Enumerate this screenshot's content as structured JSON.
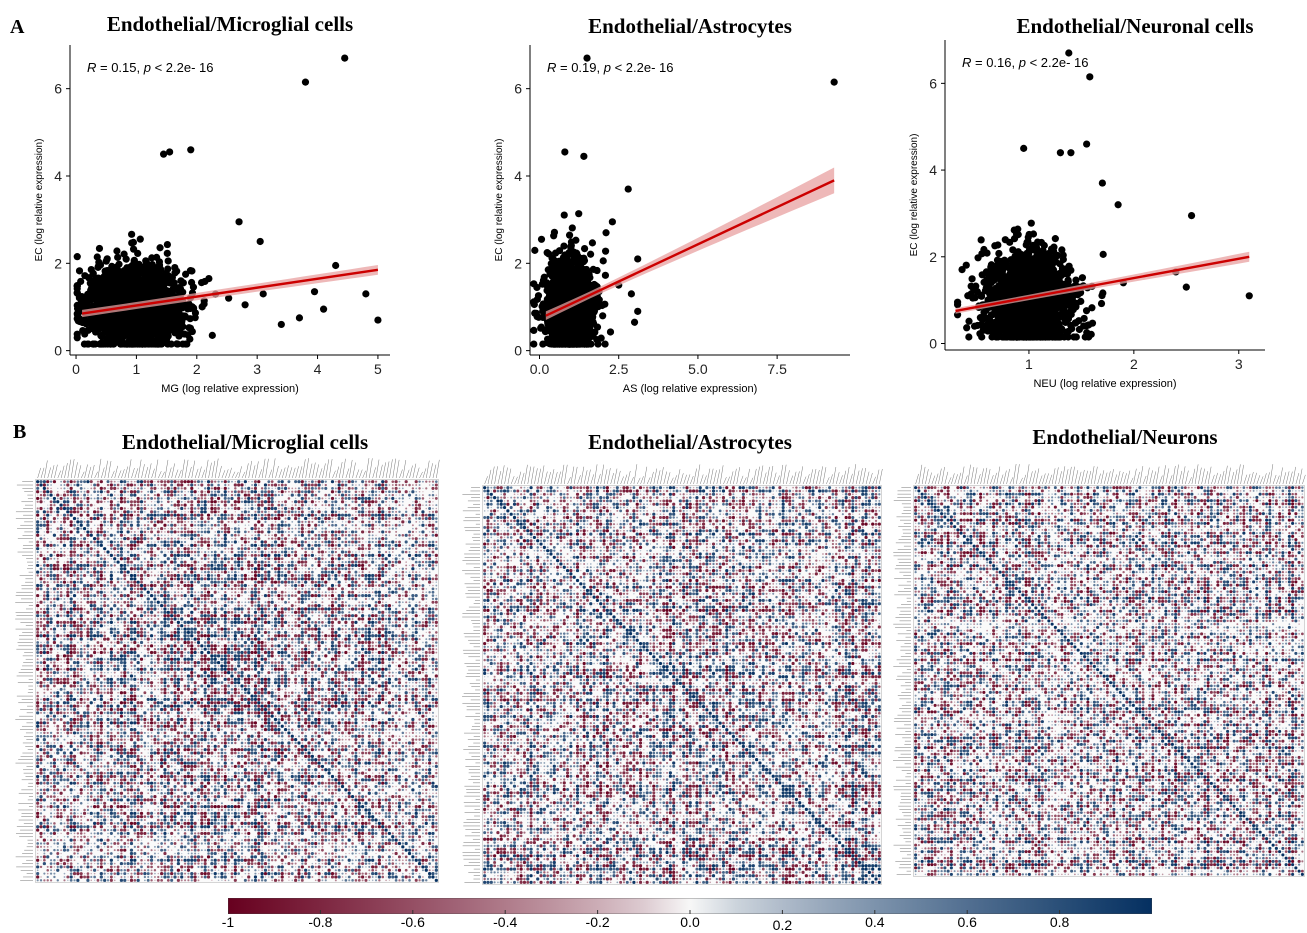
{
  "panels": {
    "A": {
      "label": "A"
    },
    "B": {
      "label": "B"
    }
  },
  "colors": {
    "point": "#000000",
    "fit_line": "#cc0000",
    "ci_band": "#e8a0a0",
    "neg": "#67001f",
    "zero": "#f7f7f7",
    "pos": "#053061"
  },
  "chart_data": [
    {
      "type": "scatter",
      "title": "Endothelial/Microglial cells",
      "xlabel": "MG (log relative expression)",
      "ylabel": "EC (log relative expression)",
      "annotation": {
        "r": "R",
        "r_text": " = 0.15, ",
        "p": "p",
        "p_text": " < 2.2e- 16"
      },
      "xlim": [
        -0.1,
        5.2
      ],
      "ylim": [
        -0.1,
        7.0
      ],
      "xticks": [
        0,
        1,
        2,
        3,
        4,
        5
      ],
      "yticks": [
        0,
        2,
        4,
        6
      ],
      "xtick_labels": [
        "0",
        "1",
        "2",
        "3",
        "4",
        "5"
      ],
      "ytick_labels": [
        "0",
        "2",
        "4",
        "6"
      ],
      "cloud": {
        "cx": 1.0,
        "cy": 1.0,
        "sx": 0.35,
        "sy": 0.45,
        "n": 2200
      },
      "points": [
        [
          3.8,
          6.15
        ],
        [
          4.45,
          6.7
        ],
        [
          1.45,
          4.5
        ],
        [
          1.55,
          4.55
        ],
        [
          1.9,
          4.6
        ],
        [
          2.7,
          2.95
        ],
        [
          3.05,
          2.5
        ],
        [
          4.3,
          1.95
        ],
        [
          3.95,
          1.35
        ],
        [
          4.1,
          0.95
        ],
        [
          4.8,
          1.3
        ],
        [
          5.0,
          0.7
        ],
        [
          3.7,
          0.75
        ],
        [
          3.4,
          0.6
        ],
        [
          3.1,
          1.3
        ],
        [
          2.8,
          1.05
        ],
        [
          2.2,
          1.65
        ]
      ],
      "fit": {
        "x0": 0.1,
        "y0": 0.85,
        "x1": 5.0,
        "y1": 1.85,
        "ci0": 0.08,
        "ci1": 0.12
      }
    },
    {
      "type": "scatter",
      "title": "Endothelial/Astrocytes",
      "xlabel": "AS (log relative expression)",
      "ylabel": "EC (log relative expression)",
      "annotation": {
        "r": "R",
        "r_text": " = 0.19, ",
        "p": "p",
        "p_text": " < 2.2e- 16"
      },
      "xlim": [
        -0.3,
        9.8
      ],
      "ylim": [
        -0.1,
        7.0
      ],
      "xticks": [
        0.0,
        2.5,
        5.0,
        7.5
      ],
      "yticks": [
        0,
        2,
        4,
        6
      ],
      "xtick_labels": [
        "0.0",
        "2.5",
        "5.0",
        "7.5"
      ],
      "ytick_labels": [
        "0",
        "2",
        "4",
        "6"
      ],
      "cloud": {
        "cx": 0.95,
        "cy": 1.0,
        "sx": 0.35,
        "sy": 0.55,
        "n": 1500
      },
      "points": [
        [
          1.5,
          6.7
        ],
        [
          9.3,
          6.15
        ],
        [
          0.8,
          4.55
        ],
        [
          1.4,
          4.45
        ],
        [
          2.8,
          3.7
        ],
        [
          2.3,
          2.95
        ],
        [
          2.1,
          2.7
        ],
        [
          2.9,
          1.3
        ],
        [
          3.1,
          0.9
        ],
        [
          3.0,
          0.65
        ],
        [
          3.1,
          2.1
        ],
        [
          2.5,
          1.5
        ]
      ],
      "fit": {
        "x0": 0.2,
        "y0": 0.8,
        "x1": 9.3,
        "y1": 3.9,
        "ci0": 0.08,
        "ci1": 0.35
      }
    },
    {
      "type": "scatter",
      "title": "Endothelial/Neuronal cells",
      "xlabel": "NEU (log relative expression)",
      "ylabel": "EC (log relative expression)",
      "annotation": {
        "r": "R",
        "r_text": " = 0.16, ",
        "p": "p",
        "p_text": " < 2.2e- 16"
      },
      "xlim": [
        0.2,
        3.25
      ],
      "ylim": [
        -0.15,
        7.0
      ],
      "xticks": [
        1,
        2,
        3
      ],
      "yticks": [
        0,
        2,
        4,
        6
      ],
      "xtick_labels": [
        "1",
        "2",
        "3"
      ],
      "ytick_labels": [
        "0",
        "2",
        "4",
        "6"
      ],
      "cloud": {
        "cx": 1.0,
        "cy": 1.0,
        "sx": 0.2,
        "sy": 0.5,
        "n": 2000
      },
      "points": [
        [
          1.38,
          6.7
        ],
        [
          1.58,
          6.15
        ],
        [
          1.55,
          4.6
        ],
        [
          0.95,
          4.5
        ],
        [
          1.4,
          4.4
        ],
        [
          1.3,
          4.4
        ],
        [
          1.7,
          3.7
        ],
        [
          1.85,
          3.2
        ],
        [
          2.55,
          2.95
        ],
        [
          2.4,
          1.65
        ],
        [
          2.5,
          1.3
        ],
        [
          3.1,
          1.1
        ],
        [
          1.9,
          1.4
        ]
      ],
      "fit": {
        "x0": 0.3,
        "y0": 0.75,
        "x1": 3.1,
        "y1": 2.0,
        "ci0": 0.06,
        "ci1": 0.13
      }
    },
    {
      "type": "heatmap",
      "title": "Endothelial/Microglial cells",
      "grid": 120,
      "seed": 11
    },
    {
      "type": "heatmap",
      "title": "Endothelial/Astrocytes",
      "grid": 120,
      "seed": 23
    },
    {
      "type": "heatmap",
      "title": "Endothelial/Neurons",
      "grid": 120,
      "seed": 37
    }
  ],
  "colorbar": {
    "min": -1.0,
    "max": 1.0,
    "ticks": [
      {
        "value": -1.0,
        "label": "-1"
      },
      {
        "value": -0.8,
        "label": "-0.8"
      },
      {
        "value": -0.6,
        "label": "-0.6"
      },
      {
        "value": -0.4,
        "label": "-0.4"
      },
      {
        "value": -0.2,
        "label": "-0.2"
      },
      {
        "value": 0.0,
        "label": "0.0"
      },
      {
        "value": 0.2,
        "label": "0.2"
      },
      {
        "value": 0.4,
        "label": "0.4"
      },
      {
        "value": 0.6,
        "label": "0.6"
      },
      {
        "value": 0.8,
        "label": "0.8"
      }
    ]
  }
}
